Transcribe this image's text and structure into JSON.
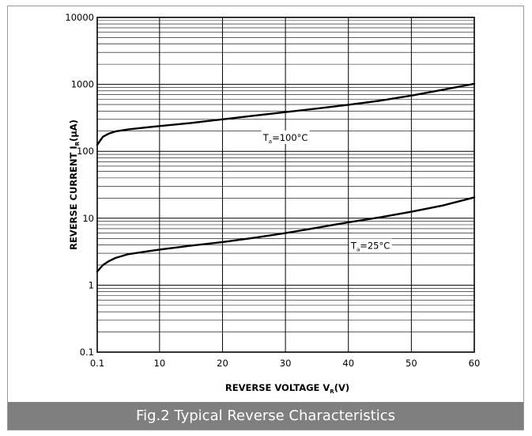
{
  "caption": "Fig.2 Typical Reverse Characteristics",
  "chart_data": {
    "type": "line",
    "xlabel": "REVERSE VOLTAGE V",
    "xlabel_sub": "R",
    "xlabel_unit": "(V)",
    "ylabel": "REVERSE CURRENT I",
    "ylabel_sub": "R",
    "ylabel_unit": "(μA)",
    "x_scale": "linear",
    "y_scale": "log",
    "xlim": [
      0.1,
      60
    ],
    "ylim": [
      0.1,
      10000
    ],
    "x_ticks": [
      0.1,
      10,
      20,
      30,
      40,
      50,
      60
    ],
    "x_tick_labels": [
      "0.1",
      "10",
      "20",
      "30",
      "40",
      "50",
      "60"
    ],
    "y_ticks": [
      0.1,
      1,
      10,
      100,
      1000,
      10000
    ],
    "y_tick_labels": [
      "0.1",
      "1",
      "10",
      "100",
      "1000",
      "10000"
    ],
    "grid": true,
    "line_color": "#000000",
    "series": [
      {
        "name": "T=100°C",
        "label_main": "T",
        "label_sub": "a",
        "label_rest": "=100°C",
        "label_at": [
          30,
          160
        ],
        "x": [
          0.1,
          1,
          2,
          3,
          5,
          8,
          10,
          15,
          20,
          25,
          30,
          35,
          40,
          45,
          50,
          55,
          60
        ],
        "y": [
          125,
          165,
          185,
          198,
          212,
          228,
          238,
          265,
          300,
          340,
          385,
          435,
          495,
          570,
          680,
          830,
          1020
        ]
      },
      {
        "name": "T=25°C",
        "label_main": "T",
        "label_sub": "a",
        "label_rest": "=25°C",
        "label_at": [
          43.5,
          3.9
        ],
        "x": [
          0.1,
          1,
          2,
          3,
          5,
          8,
          10,
          15,
          20,
          25,
          30,
          35,
          40,
          45,
          50,
          55,
          60
        ],
        "y": [
          1.6,
          2.0,
          2.3,
          2.55,
          2.9,
          3.2,
          3.4,
          3.9,
          4.4,
          5.1,
          6.0,
          7.2,
          8.7,
          10.3,
          12.5,
          15.5,
          20.5
        ]
      }
    ]
  }
}
